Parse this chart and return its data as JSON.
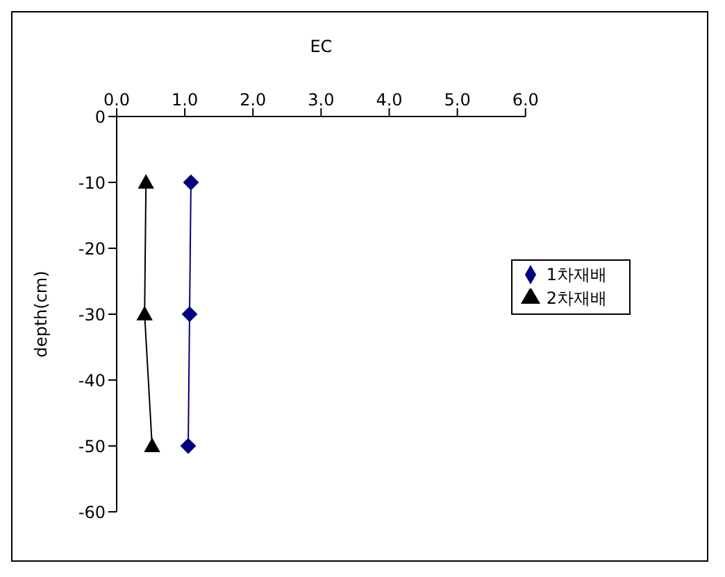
{
  "chart_data": {
    "type": "line",
    "xlabel": "EC",
    "ylabel": "depth(cm)",
    "xlim": [
      0,
      6
    ],
    "xticks": [
      {
        "value": 0,
        "label": "0.0"
      },
      {
        "value": 1,
        "label": "1.0"
      },
      {
        "value": 2,
        "label": "2.0"
      },
      {
        "value": 3,
        "label": "3.0"
      },
      {
        "value": 4,
        "label": "4.0"
      },
      {
        "value": 5,
        "label": "5.0"
      },
      {
        "value": 6,
        "label": "6.0"
      }
    ],
    "ylim": [
      -60,
      0
    ],
    "yticks": [
      -60,
      -50,
      -40,
      -30,
      -20,
      -10,
      0
    ],
    "grid": false,
    "legend": "right",
    "line_style": "solid",
    "series": [
      {
        "name": "1차재배",
        "color": "#000080",
        "marker": "diamond",
        "x": [
          1.09,
          1.07,
          1.05
        ],
        "values": [
          -10,
          -30,
          -50
        ]
      },
      {
        "name": "2차재배",
        "color": "#000000",
        "marker": "triangle",
        "x": [
          0.43,
          0.41,
          0.52
        ],
        "values": [
          -10,
          -30,
          -50
        ]
      }
    ]
  }
}
